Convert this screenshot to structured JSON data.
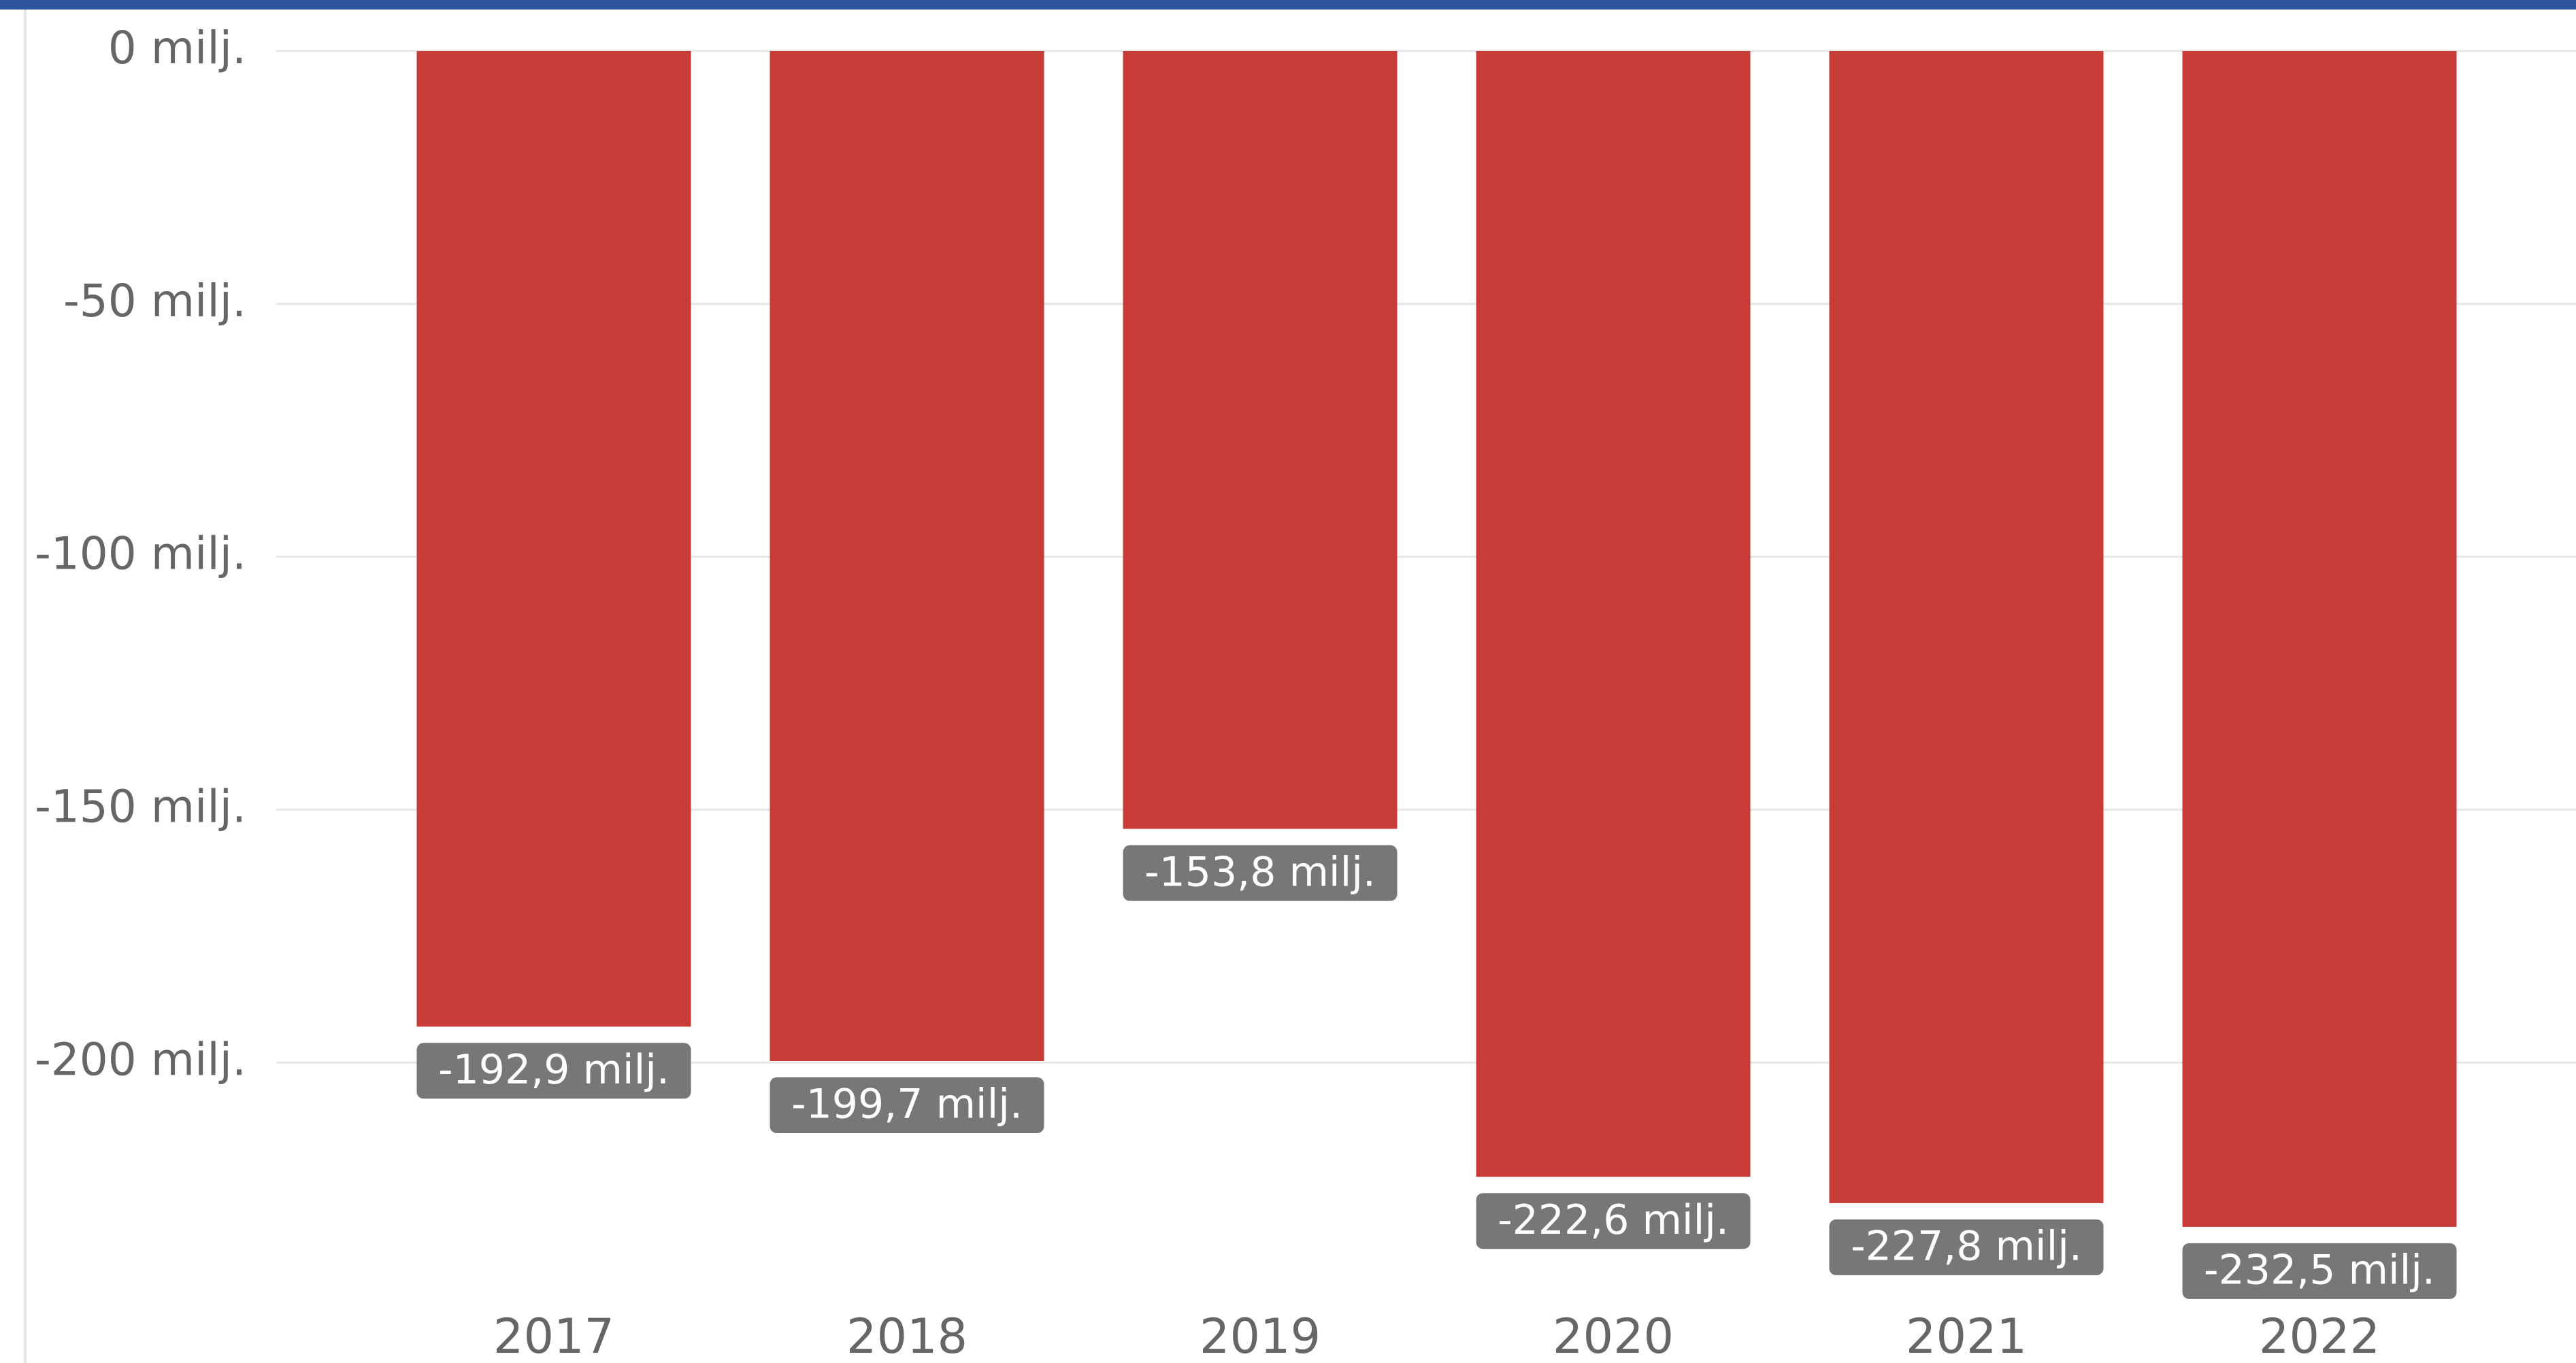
{
  "chart_data": {
    "type": "bar",
    "categories": [
      "2017",
      "2018",
      "2019",
      "2020",
      "2021",
      "2022"
    ],
    "values": [
      -192.9,
      -199.7,
      -153.8,
      -222.6,
      -227.8,
      -232.5
    ],
    "value_labels": [
      "-192,9 milj.",
      "-199,7 milj.",
      "-153,8 milj.",
      "-222,6 milj.",
      "-227,8 milj.",
      "-232,5 milj."
    ],
    "color": "#c73c36",
    "ylim": [
      -250,
      0
    ],
    "yticks": [
      {
        "value": 0,
        "label": "0 milj."
      },
      {
        "value": -50,
        "label": "-50 milj."
      },
      {
        "value": -100,
        "label": "-100 milj."
      },
      {
        "value": -150,
        "label": "-150 milj."
      },
      {
        "value": -200,
        "label": "-200 milj."
      }
    ],
    "grid": true
  }
}
